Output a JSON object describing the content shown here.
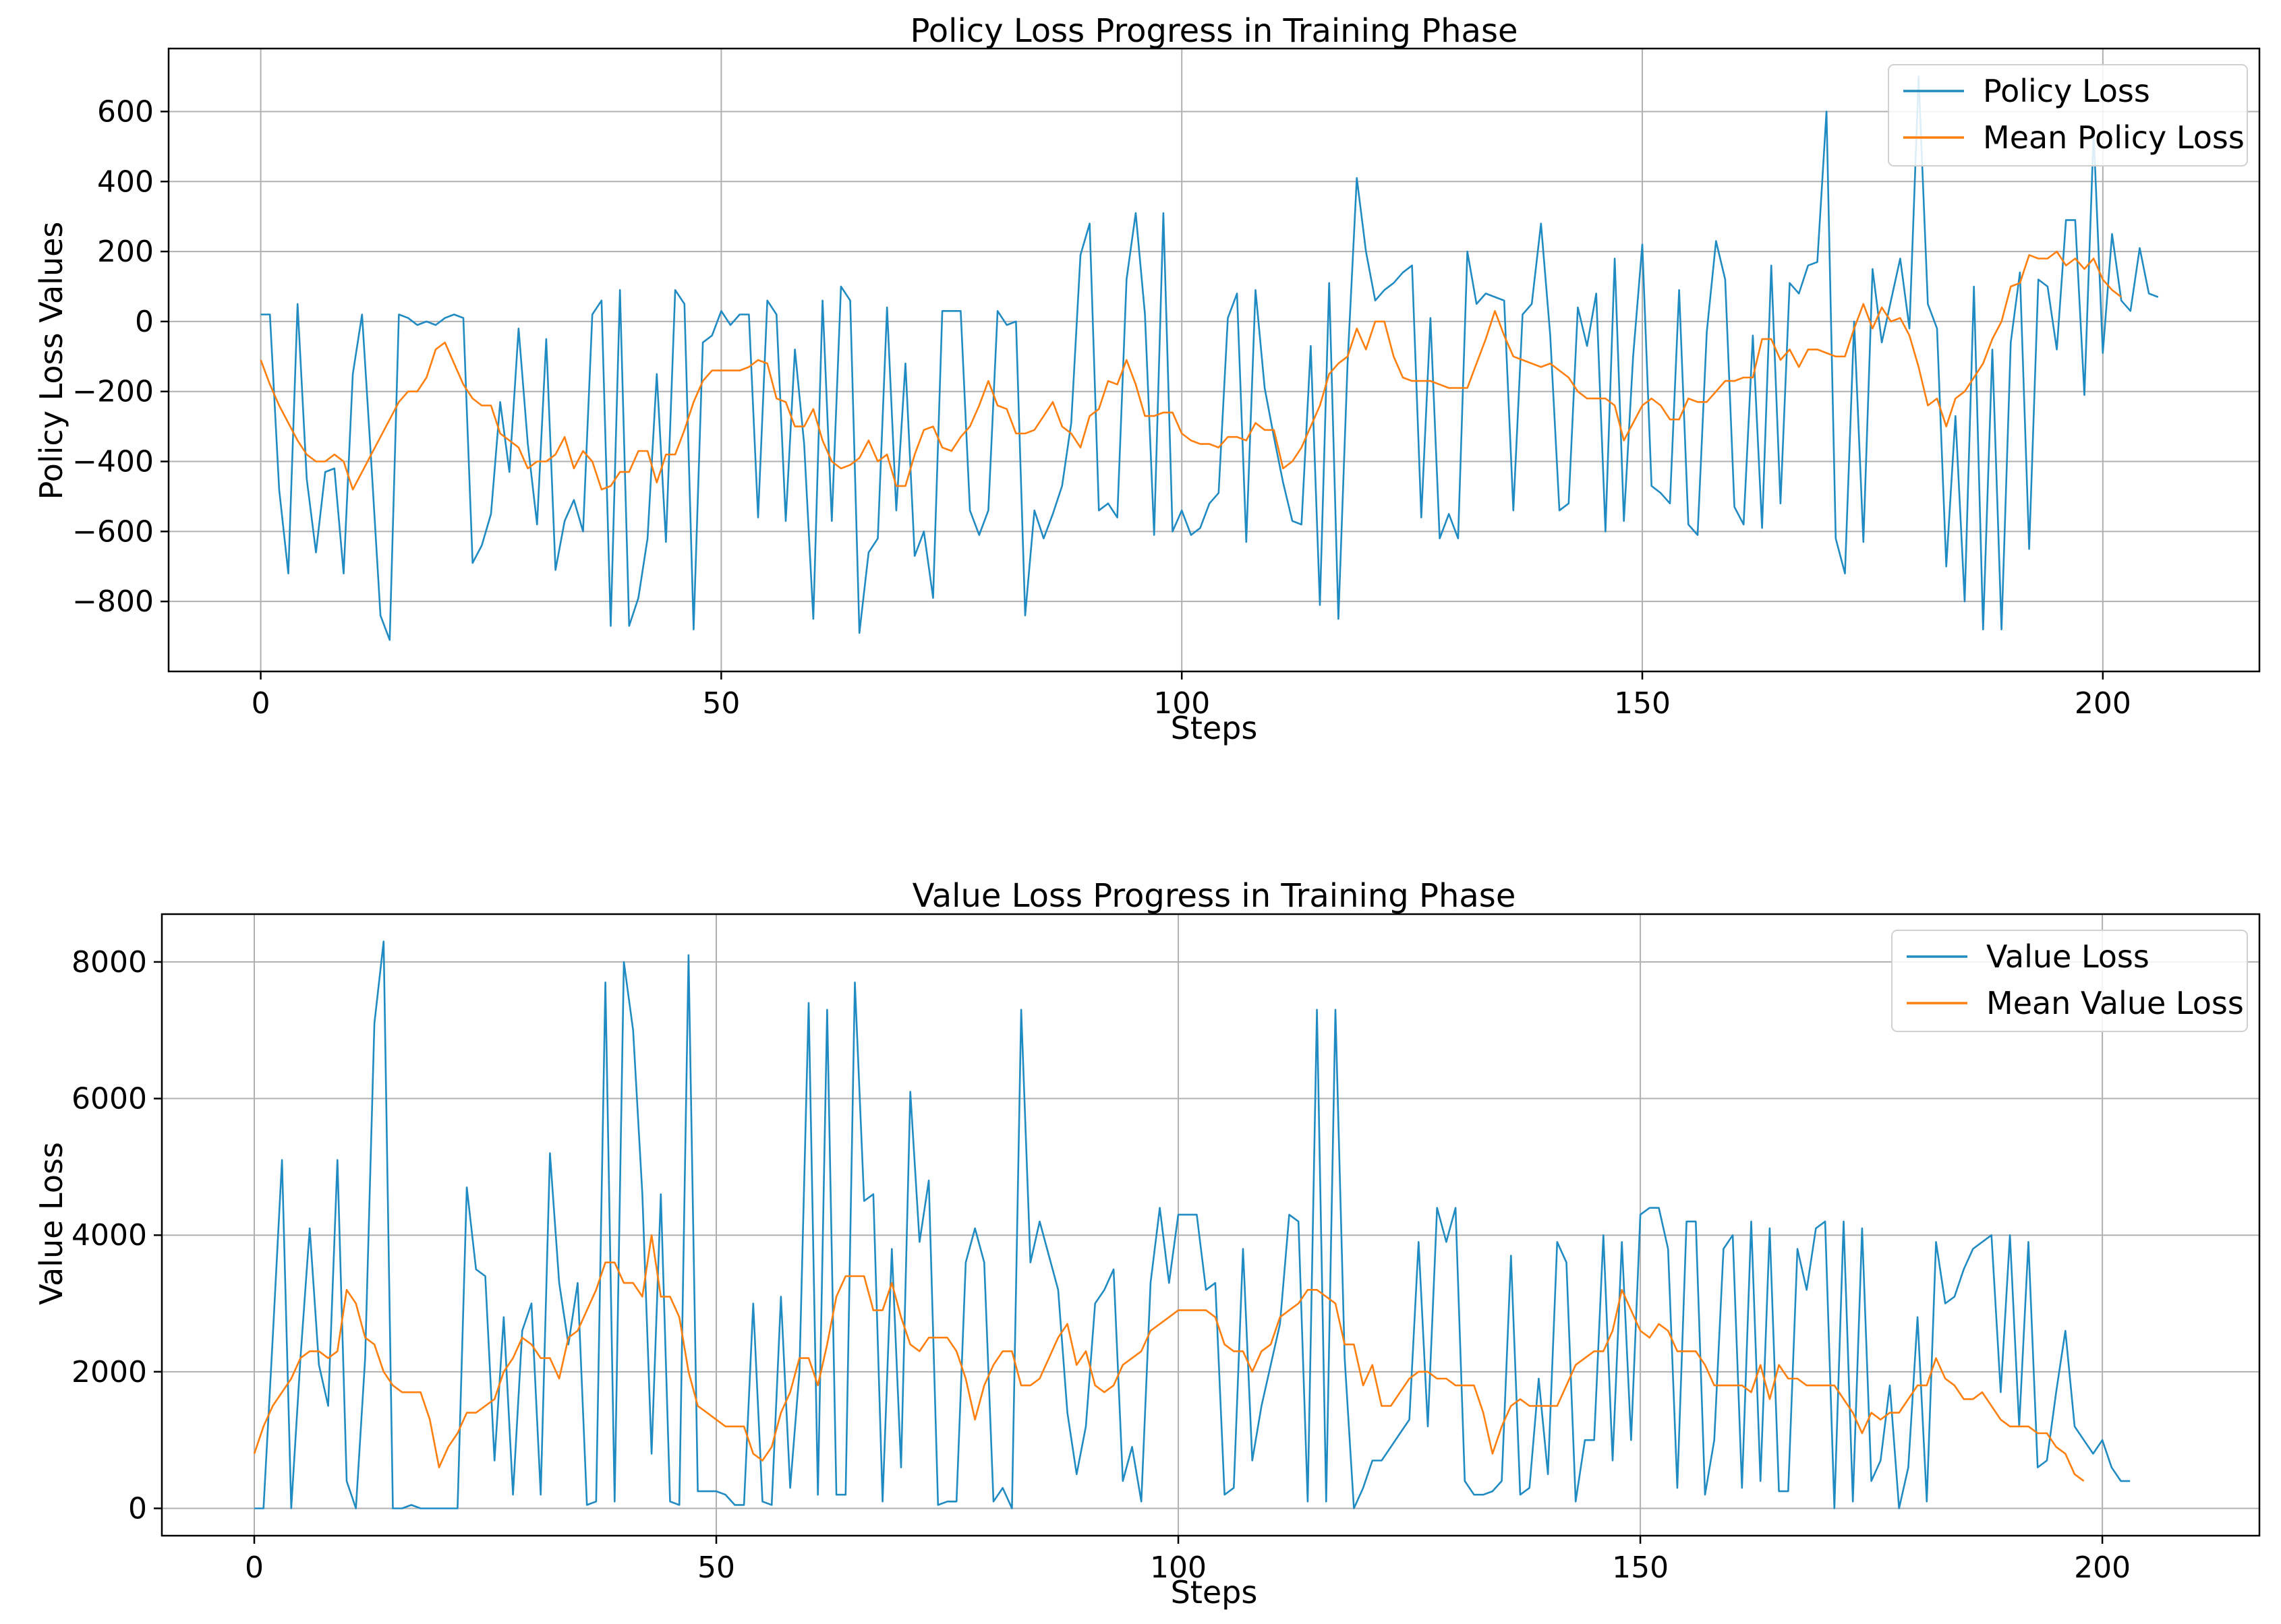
{
  "colors": {
    "raw": "#1f8bc2",
    "mean": "#ff7f0e"
  },
  "chart_data": [
    {
      "type": "line",
      "title": "Policy Loss Progress in Training Phase",
      "xlabel": "Steps",
      "ylabel": "Policy Loss Values",
      "xlim": [
        -10,
        217
      ],
      "ylim": [
        -1000,
        780
      ],
      "xticks": [
        0,
        50,
        100,
        150,
        200
      ],
      "yticks": [
        -800,
        -600,
        -400,
        -200,
        0,
        200,
        400,
        600
      ],
      "grid": true,
      "legend": "top-right",
      "series": [
        {
          "name": "Policy Loss",
          "color_key": "raw",
          "values": [
            20,
            20,
            -480,
            -720,
            50,
            -450,
            -660,
            -430,
            -420,
            -720,
            -150,
            20,
            -400,
            -840,
            -910,
            20,
            10,
            -10,
            0,
            -10,
            10,
            20,
            10,
            -690,
            -640,
            -550,
            -230,
            -430,
            -20,
            -350,
            -580,
            -50,
            -710,
            -570,
            -510,
            -600,
            20,
            60,
            -870,
            90,
            -870,
            -790,
            -620,
            -150,
            -630,
            90,
            50,
            -880,
            -60,
            -40,
            30,
            -10,
            20,
            20,
            -560,
            60,
            20,
            -570,
            -80,
            -350,
            -850,
            60,
            -570,
            100,
            60,
            -890,
            -660,
            -620,
            40,
            -540,
            -120,
            -670,
            -600,
            -790,
            30,
            30,
            30,
            -540,
            -610,
            -540,
            30,
            -10,
            0,
            -840,
            -540,
            -620,
            -550,
            -470,
            -290,
            190,
            280,
            -540,
            -520,
            -560,
            120,
            310,
            20,
            -610,
            310,
            -600,
            -540,
            -610,
            -590,
            -520,
            -490,
            10,
            80,
            -630,
            90,
            -190,
            -330,
            -460,
            -570,
            -580,
            -70,
            -810,
            110,
            -850,
            -120,
            410,
            200,
            60,
            90,
            110,
            140,
            160,
            -560,
            10,
            -620,
            -550,
            -620,
            200,
            50,
            80,
            70,
            60,
            -540,
            20,
            50,
            280,
            -40,
            -540,
            -520,
            40,
            -70,
            80,
            -600,
            180,
            -570,
            -100,
            220,
            -470,
            -490,
            -520,
            90,
            -580,
            -610,
            -30,
            230,
            120,
            -530,
            -580,
            -40,
            -590,
            160,
            -520,
            110,
            80,
            160,
            170,
            600,
            -620,
            -720,
            0,
            -630,
            150,
            -60,
            60,
            180,
            -20,
            700,
            50,
            -20,
            -700,
            -270,
            -800,
            100,
            -880,
            -80,
            -880,
            -60,
            140,
            -650,
            120,
            100,
            -80,
            290,
            290,
            -210,
            540,
            -90,
            250,
            60,
            30,
            210,
            80,
            70
          ]
        },
        {
          "name": "Mean Policy Loss",
          "color_key": "mean",
          "values": [
            -110,
            -180,
            -240,
            -290,
            -340,
            -380,
            -400,
            -400,
            -380,
            -400,
            -480,
            -430,
            -380,
            -330,
            -280,
            -230,
            -200,
            -200,
            -160,
            -80,
            -60,
            -120,
            -180,
            -220,
            -240,
            -240,
            -320,
            -340,
            -360,
            -420,
            -400,
            -400,
            -380,
            -330,
            -420,
            -370,
            -400,
            -480,
            -470,
            -430,
            -430,
            -370,
            -370,
            -460,
            -380,
            -380,
            -310,
            -230,
            -170,
            -140,
            -140,
            -140,
            -140,
            -130,
            -110,
            -120,
            -220,
            -230,
            -300,
            -300,
            -250,
            -340,
            -400,
            -420,
            -410,
            -390,
            -340,
            -400,
            -380,
            -470,
            -470,
            -380,
            -310,
            -300,
            -360,
            -370,
            -330,
            -300,
            -240,
            -170,
            -240,
            -250,
            -320,
            -320,
            -310,
            -270,
            -230,
            -300,
            -320,
            -360,
            -270,
            -250,
            -170,
            -180,
            -110,
            -180,
            -270,
            -270,
            -260,
            -260,
            -320,
            -340,
            -350,
            -350,
            -360,
            -330,
            -330,
            -340,
            -290,
            -310,
            -310,
            -420,
            -400,
            -360,
            -300,
            -240,
            -150,
            -120,
            -100,
            -20,
            -80,
            0,
            0,
            -100,
            -160,
            -170,
            -170,
            -170,
            -180,
            -190,
            -190,
            -190,
            -120,
            -50,
            30,
            -40,
            -100,
            -110,
            -120,
            -130,
            -120,
            -140,
            -160,
            -200,
            -220,
            -220,
            -220,
            -240,
            -340,
            -290,
            -240,
            -220,
            -240,
            -280,
            -280,
            -220,
            -230,
            -230,
            -200,
            -170,
            -170,
            -160,
            -160,
            -50,
            -50,
            -110,
            -80,
            -130,
            -80,
            -80,
            -90,
            -100,
            -100,
            -20,
            50,
            -20,
            40,
            0,
            10,
            -40,
            -130,
            -240,
            -220,
            -300,
            -220,
            -200,
            -160,
            -120,
            -50,
            0,
            100,
            110,
            190,
            180,
            180,
            200,
            160,
            180,
            150,
            180,
            120,
            90,
            70
          ]
        }
      ]
    },
    {
      "type": "line",
      "title": "Value Loss Progress in Training Phase",
      "xlabel": "Steps",
      "ylabel": "Value Loss",
      "xlim": [
        -10,
        217
      ],
      "ylim": [
        -400,
        8700
      ],
      "xticks": [
        0,
        50,
        100,
        150,
        200
      ],
      "yticks": [
        0,
        2000,
        4000,
        6000,
        8000
      ],
      "grid": true,
      "legend": "top-right",
      "series": [
        {
          "name": "Value Loss",
          "color_key": "raw",
          "values": [
            0,
            0,
            2500,
            5100,
            0,
            2200,
            4100,
            2100,
            1500,
            5100,
            400,
            0,
            2200,
            7100,
            8300,
            0,
            0,
            50,
            0,
            0,
            0,
            0,
            0,
            4700,
            3500,
            3400,
            700,
            2800,
            200,
            2600,
            3000,
            200,
            5200,
            3300,
            2400,
            3300,
            50,
            100,
            7700,
            100,
            8000,
            7000,
            4600,
            800,
            4600,
            100,
            50,
            8100,
            250,
            250,
            250,
            200,
            50,
            50,
            3000,
            100,
            50,
            3100,
            300,
            2000,
            7400,
            200,
            7300,
            200,
            200,
            7700,
            4500,
            4600,
            100,
            3800,
            600,
            6100,
            3900,
            4800,
            50,
            100,
            100,
            3600,
            4100,
            3600,
            100,
            300,
            0,
            7300,
            3600,
            4200,
            3700,
            3200,
            1400,
            500,
            1200,
            3000,
            3200,
            3500,
            400,
            900,
            100,
            3300,
            4400,
            3300,
            4300,
            4300,
            4300,
            3200,
            3300,
            200,
            300,
            3800,
            700,
            1500,
            2100,
            2700,
            4300,
            4200,
            100,
            7300,
            100,
            7300,
            2200,
            0,
            300,
            700,
            700,
            900,
            1100,
            1300,
            3900,
            1200,
            4400,
            3900,
            4400,
            400,
            200,
            200,
            250,
            400,
            3700,
            200,
            300,
            1900,
            500,
            3900,
            3600,
            100,
            1000,
            1000,
            4000,
            700,
            3900,
            1000,
            4300,
            4400,
            4400,
            3800,
            300,
            4200,
            4200,
            200,
            1000,
            3800,
            4000,
            300,
            4200,
            400,
            4100,
            250,
            250,
            3800,
            3200,
            4100,
            4200,
            0,
            4200,
            100,
            4100,
            400,
            700,
            1800,
            0,
            600,
            2800,
            100,
            3900,
            3000,
            3100,
            3500,
            3800,
            3900,
            4000,
            1700,
            4000,
            1200,
            3900,
            600,
            700,
            1700,
            2600,
            1200,
            1000,
            800,
            1000,
            600,
            400,
            400
          ]
        },
        {
          "name": "Mean Value Loss",
          "color_key": "mean",
          "values": [
            800,
            1200,
            1500,
            1700,
            1900,
            2200,
            2300,
            2300,
            2200,
            2300,
            3200,
            3000,
            2500,
            2400,
            2000,
            1800,
            1700,
            1700,
            1700,
            1300,
            600,
            900,
            1100,
            1400,
            1400,
            1500,
            1600,
            2000,
            2200,
            2500,
            2400,
            2200,
            2200,
            1900,
            2500,
            2600,
            2900,
            3200,
            3600,
            3600,
            3300,
            3300,
            3100,
            4000,
            3100,
            3100,
            2800,
            2000,
            1500,
            1400,
            1300,
            1200,
            1200,
            1200,
            800,
            700,
            900,
            1400,
            1700,
            2200,
            2200,
            1800,
            2400,
            3100,
            3400,
            3400,
            3400,
            2900,
            2900,
            3300,
            2800,
            2400,
            2300,
            2500,
            2500,
            2500,
            2300,
            1900,
            1300,
            1800,
            2100,
            2300,
            2300,
            1800,
            1800,
            1900,
            2200,
            2500,
            2700,
            2100,
            2300,
            1800,
            1700,
            1800,
            2100,
            2200,
            2300,
            2600,
            2700,
            2800,
            2900,
            2900,
            2900,
            2900,
            2800,
            2400,
            2300,
            2300,
            2000,
            2300,
            2400,
            2800,
            2900,
            3000,
            3200,
            3200,
            3100,
            3000,
            2400,
            2400,
            1800,
            2100,
            1500,
            1500,
            1700,
            1900,
            2000,
            2000,
            1900,
            1900,
            1800,
            1800,
            1800,
            1400,
            800,
            1200,
            1500,
            1600,
            1500,
            1500,
            1500,
            1500,
            1800,
            2100,
            2200,
            2300,
            2300,
            2600,
            3200,
            2900,
            2600,
            2500,
            2700,
            2600,
            2300,
            2300,
            2300,
            2100,
            1800,
            1800,
            1800,
            1800,
            1700,
            2100,
            1600,
            2100,
            1900,
            1900,
            1800,
            1800,
            1800,
            1800,
            1600,
            1400,
            1100,
            1400,
            1300,
            1400,
            1400,
            1600,
            1800,
            1800,
            2200,
            1900,
            1800,
            1600,
            1600,
            1700,
            1500,
            1300,
            1200,
            1200,
            1200,
            1100,
            1100,
            900,
            800,
            500,
            400
          ]
        }
      ]
    }
  ]
}
